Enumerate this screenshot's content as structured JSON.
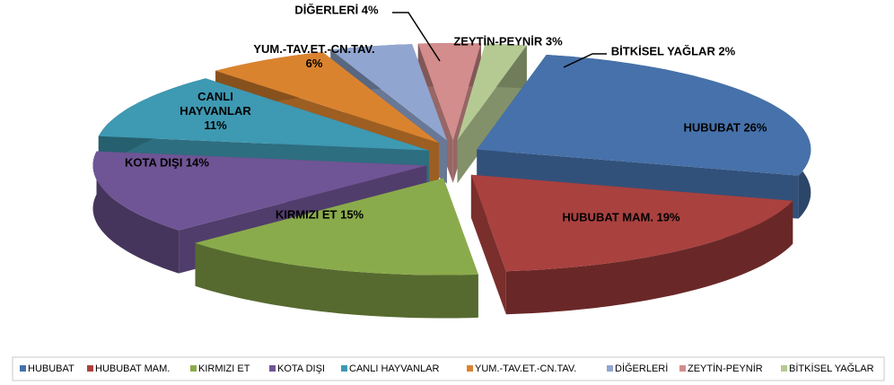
{
  "chart_data": {
    "type": "pie3d",
    "categories": [
      "HUBUBAT",
      "HUBUBAT MAM.",
      "KIRMIZI ET",
      "KOTA DIŞI",
      "CANLI HAYVANLAR",
      "YUM.-TAV.ET.-CN.TAV.",
      "DİĞERLERİ",
      "ZEYTİN-PEYNİR",
      "BİTKİSEL YAĞLAR"
    ],
    "values": [
      26,
      19,
      15,
      14,
      11,
      6,
      4,
      3,
      2
    ],
    "value_labels": [
      "HUBUBAT 26%",
      "HUBUBAT MAM. 19%",
      "KIRMIZI ET 15%",
      "KOTA DIŞI 14%",
      "CANLI\nHAYVANLAR\n11%",
      "YUM.-TAV.ET.-CN.TAV.\n6%",
      "DİĞERLERİ 4%",
      "ZEYTİN-PEYNİR 3%",
      "BİTKİSEL YAĞLAR 2%"
    ],
    "colors": [
      "#4671aa",
      "#a9413f",
      "#8aab4c",
      "#6f5595",
      "#3e99b2",
      "#da832f",
      "#90a6d0",
      "#d28d8c",
      "#b5ca93"
    ],
    "legend": "bottom"
  }
}
